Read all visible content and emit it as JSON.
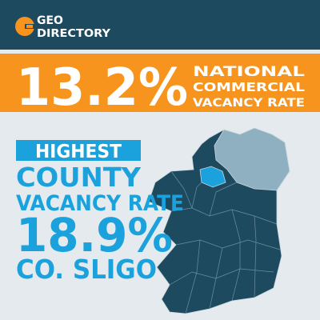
{
  "header": {
    "logo_line1": "GEO",
    "logo_line2": "DIRECTORY"
  },
  "banner": {
    "value": "13.2%",
    "label_line1": "NATIONAL",
    "label_line2": "COMMERCIAL",
    "label_line3": "VACANCY RATE"
  },
  "highlight": {
    "tag": "HIGHEST",
    "line1": "COUNTY",
    "line2": "VACANCY RATE",
    "value": "18.9%",
    "county": "CO. SLIGO"
  }
}
